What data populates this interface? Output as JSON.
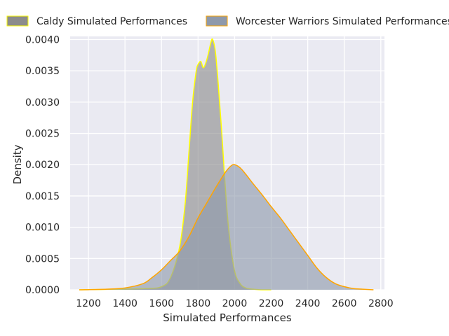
{
  "chart_data": {
    "type": "area",
    "title": "",
    "xlabel": "Simulated Performances",
    "ylabel": "Density",
    "xlim": [
      1100,
      2820
    ],
    "ylim": [
      0,
      0.00405
    ],
    "x_ticks": [
      1200,
      1400,
      1600,
      1800,
      2000,
      2200,
      2400,
      2600,
      2800
    ],
    "y_ticks": [
      0.0,
      0.0005,
      0.001,
      0.0015,
      0.002,
      0.0025,
      0.003,
      0.0035,
      0.004
    ],
    "x_tick_labels": [
      "1200",
      "1400",
      "1600",
      "1800",
      "2000",
      "2200",
      "2400",
      "2600",
      "2800"
    ],
    "y_tick_labels": [
      "0.0000",
      "0.0005",
      "0.0010",
      "0.0015",
      "0.0020",
      "0.0025",
      "0.0030",
      "0.0035",
      "0.0040"
    ],
    "grid": true,
    "legend_position": "top",
    "series": [
      {
        "name": "Caldy Simulated Performances",
        "fill": "#8c8c8c",
        "fill_opacity": 0.62,
        "line_color": "#ffff00",
        "x": [
          1150,
          1500,
          1600,
          1650,
          1700,
          1730,
          1750,
          1770,
          1790,
          1800,
          1815,
          1830,
          1850,
          1870,
          1880,
          1895,
          1910,
          1930,
          1950,
          1970,
          2000,
          2030,
          2060,
          2100,
          2150,
          2200
        ],
        "y": [
          0.0,
          2e-05,
          5e-05,
          0.0002,
          0.0007,
          0.0014,
          0.0022,
          0.003,
          0.0035,
          0.0036,
          0.00365,
          0.00355,
          0.0037,
          0.00395,
          0.004,
          0.0038,
          0.0033,
          0.0025,
          0.0016,
          0.0009,
          0.0003,
          0.0001,
          3e-05,
          1e-05,
          0.0,
          0.0
        ]
      },
      {
        "name": "Worcester Warriors Simulated Performances",
        "fill": "#8e99ab",
        "fill_opacity": 0.62,
        "line_color": "#ffa500",
        "x": [
          1150,
          1300,
          1400,
          1500,
          1550,
          1600,
          1650,
          1700,
          1750,
          1800,
          1850,
          1900,
          1950,
          1980,
          2000,
          2030,
          2060,
          2100,
          2150,
          2200,
          2250,
          2300,
          2350,
          2400,
          2450,
          2500,
          2550,
          2600,
          2650,
          2700,
          2760
        ],
        "y": [
          0.0,
          1e-05,
          3e-05,
          0.0001,
          0.0002,
          0.00032,
          0.00047,
          0.00062,
          0.00085,
          0.00115,
          0.0014,
          0.00165,
          0.00188,
          0.00198,
          0.002,
          0.00195,
          0.00185,
          0.0017,
          0.00152,
          0.00133,
          0.00115,
          0.00095,
          0.00075,
          0.00055,
          0.00035,
          0.0002,
          0.0001,
          5e-05,
          2e-05,
          1e-05,
          0.0
        ]
      }
    ]
  }
}
